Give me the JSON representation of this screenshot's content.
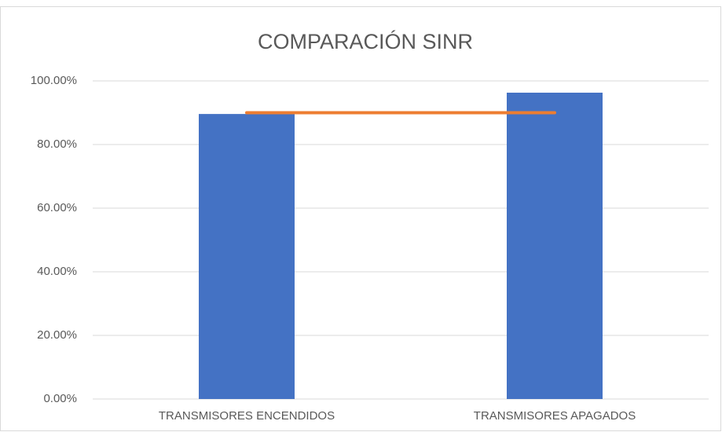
{
  "chart_data": {
    "type": "bar",
    "title": "COMPARACIÓN SINR",
    "categories": [
      "TRANSMISORES ENCENDIDOS",
      "TRANSMISORES APAGADOS"
    ],
    "series": [
      {
        "type": "bar",
        "color": "#4472c4",
        "values": [
          89.6,
          96.3
        ]
      },
      {
        "type": "line",
        "color": "#ed7d31",
        "values": [
          90,
          90
        ]
      }
    ],
    "ylim": [
      0,
      100
    ],
    "yticks": [
      {
        "value": 0,
        "label": "0.00%"
      },
      {
        "value": 20,
        "label": "20.00%"
      },
      {
        "value": 40,
        "label": "40.00%"
      },
      {
        "value": 60,
        "label": "60.00%"
      },
      {
        "value": 80,
        "label": "80.00%"
      },
      {
        "value": 100,
        "label": "100.00%"
      }
    ],
    "grid": true
  }
}
